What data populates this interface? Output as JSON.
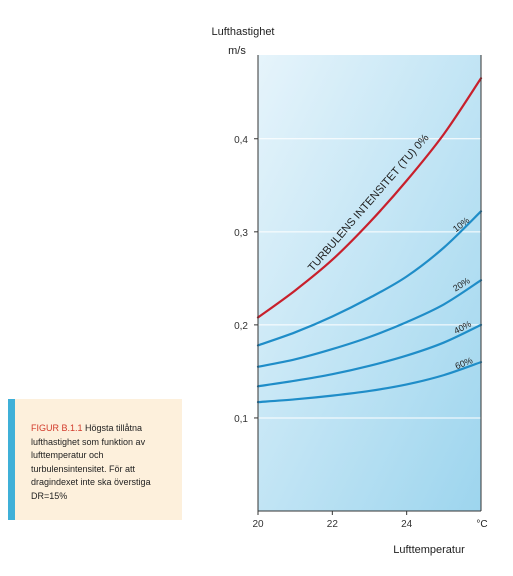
{
  "chart_data": {
    "type": "line",
    "ylabel": "Lufthastighet",
    "yunit": "m/s",
    "xlabel": "Lufttemperatur",
    "xunit": "°C",
    "xlim": [
      20,
      26
    ],
    "ylim": [
      0,
      0.49
    ],
    "xticks": [
      20,
      22,
      24
    ],
    "xtick_labels": [
      "20",
      "22",
      "24"
    ],
    "yticks": [
      0.1,
      0.2,
      0.3,
      0.4
    ],
    "ytick_labels": [
      "0,1",
      "0,2",
      "0,3",
      "0,4"
    ],
    "grid": true,
    "colors": {
      "background_light": "#e6f4fb",
      "background_dark": "#9dd5ee",
      "grid": "#ffffff",
      "series_red": "#c8202c",
      "series_blue": "#1f8dc8"
    },
    "series": [
      {
        "name": "TURBULENS INTENSITET (TU) 0%",
        "color": "#c8202c",
        "x": [
          20,
          21,
          22,
          23,
          24,
          25,
          26
        ],
        "y": [
          0.208,
          0.237,
          0.27,
          0.31,
          0.355,
          0.405,
          0.465
        ]
      },
      {
        "name": "10%",
        "color": "#1f8dc8",
        "x": [
          20,
          21,
          22,
          23,
          24,
          25,
          26
        ],
        "y": [
          0.178,
          0.192,
          0.209,
          0.229,
          0.252,
          0.283,
          0.322
        ]
      },
      {
        "name": "20%",
        "color": "#1f8dc8",
        "x": [
          20,
          21,
          22,
          23,
          24,
          25,
          26
        ],
        "y": [
          0.155,
          0.163,
          0.174,
          0.187,
          0.203,
          0.222,
          0.248
        ]
      },
      {
        "name": "40%",
        "color": "#1f8dc8",
        "x": [
          20,
          21,
          22,
          23,
          24,
          25,
          26
        ],
        "y": [
          0.134,
          0.14,
          0.147,
          0.156,
          0.167,
          0.181,
          0.2
        ]
      },
      {
        "name": "60%",
        "color": "#1f8dc8",
        "x": [
          20,
          21,
          22,
          23,
          24,
          25,
          26
        ],
        "y": [
          0.117,
          0.12,
          0.124,
          0.129,
          0.136,
          0.146,
          0.16
        ]
      }
    ]
  },
  "caption": {
    "label": "FIGUR B.1.1",
    "text": "Högsta tillåtna lufthastighet som funktion av lufttemperatur och turbulensintensitet. För att dragindexet inte ska överstiga DR=15%"
  }
}
